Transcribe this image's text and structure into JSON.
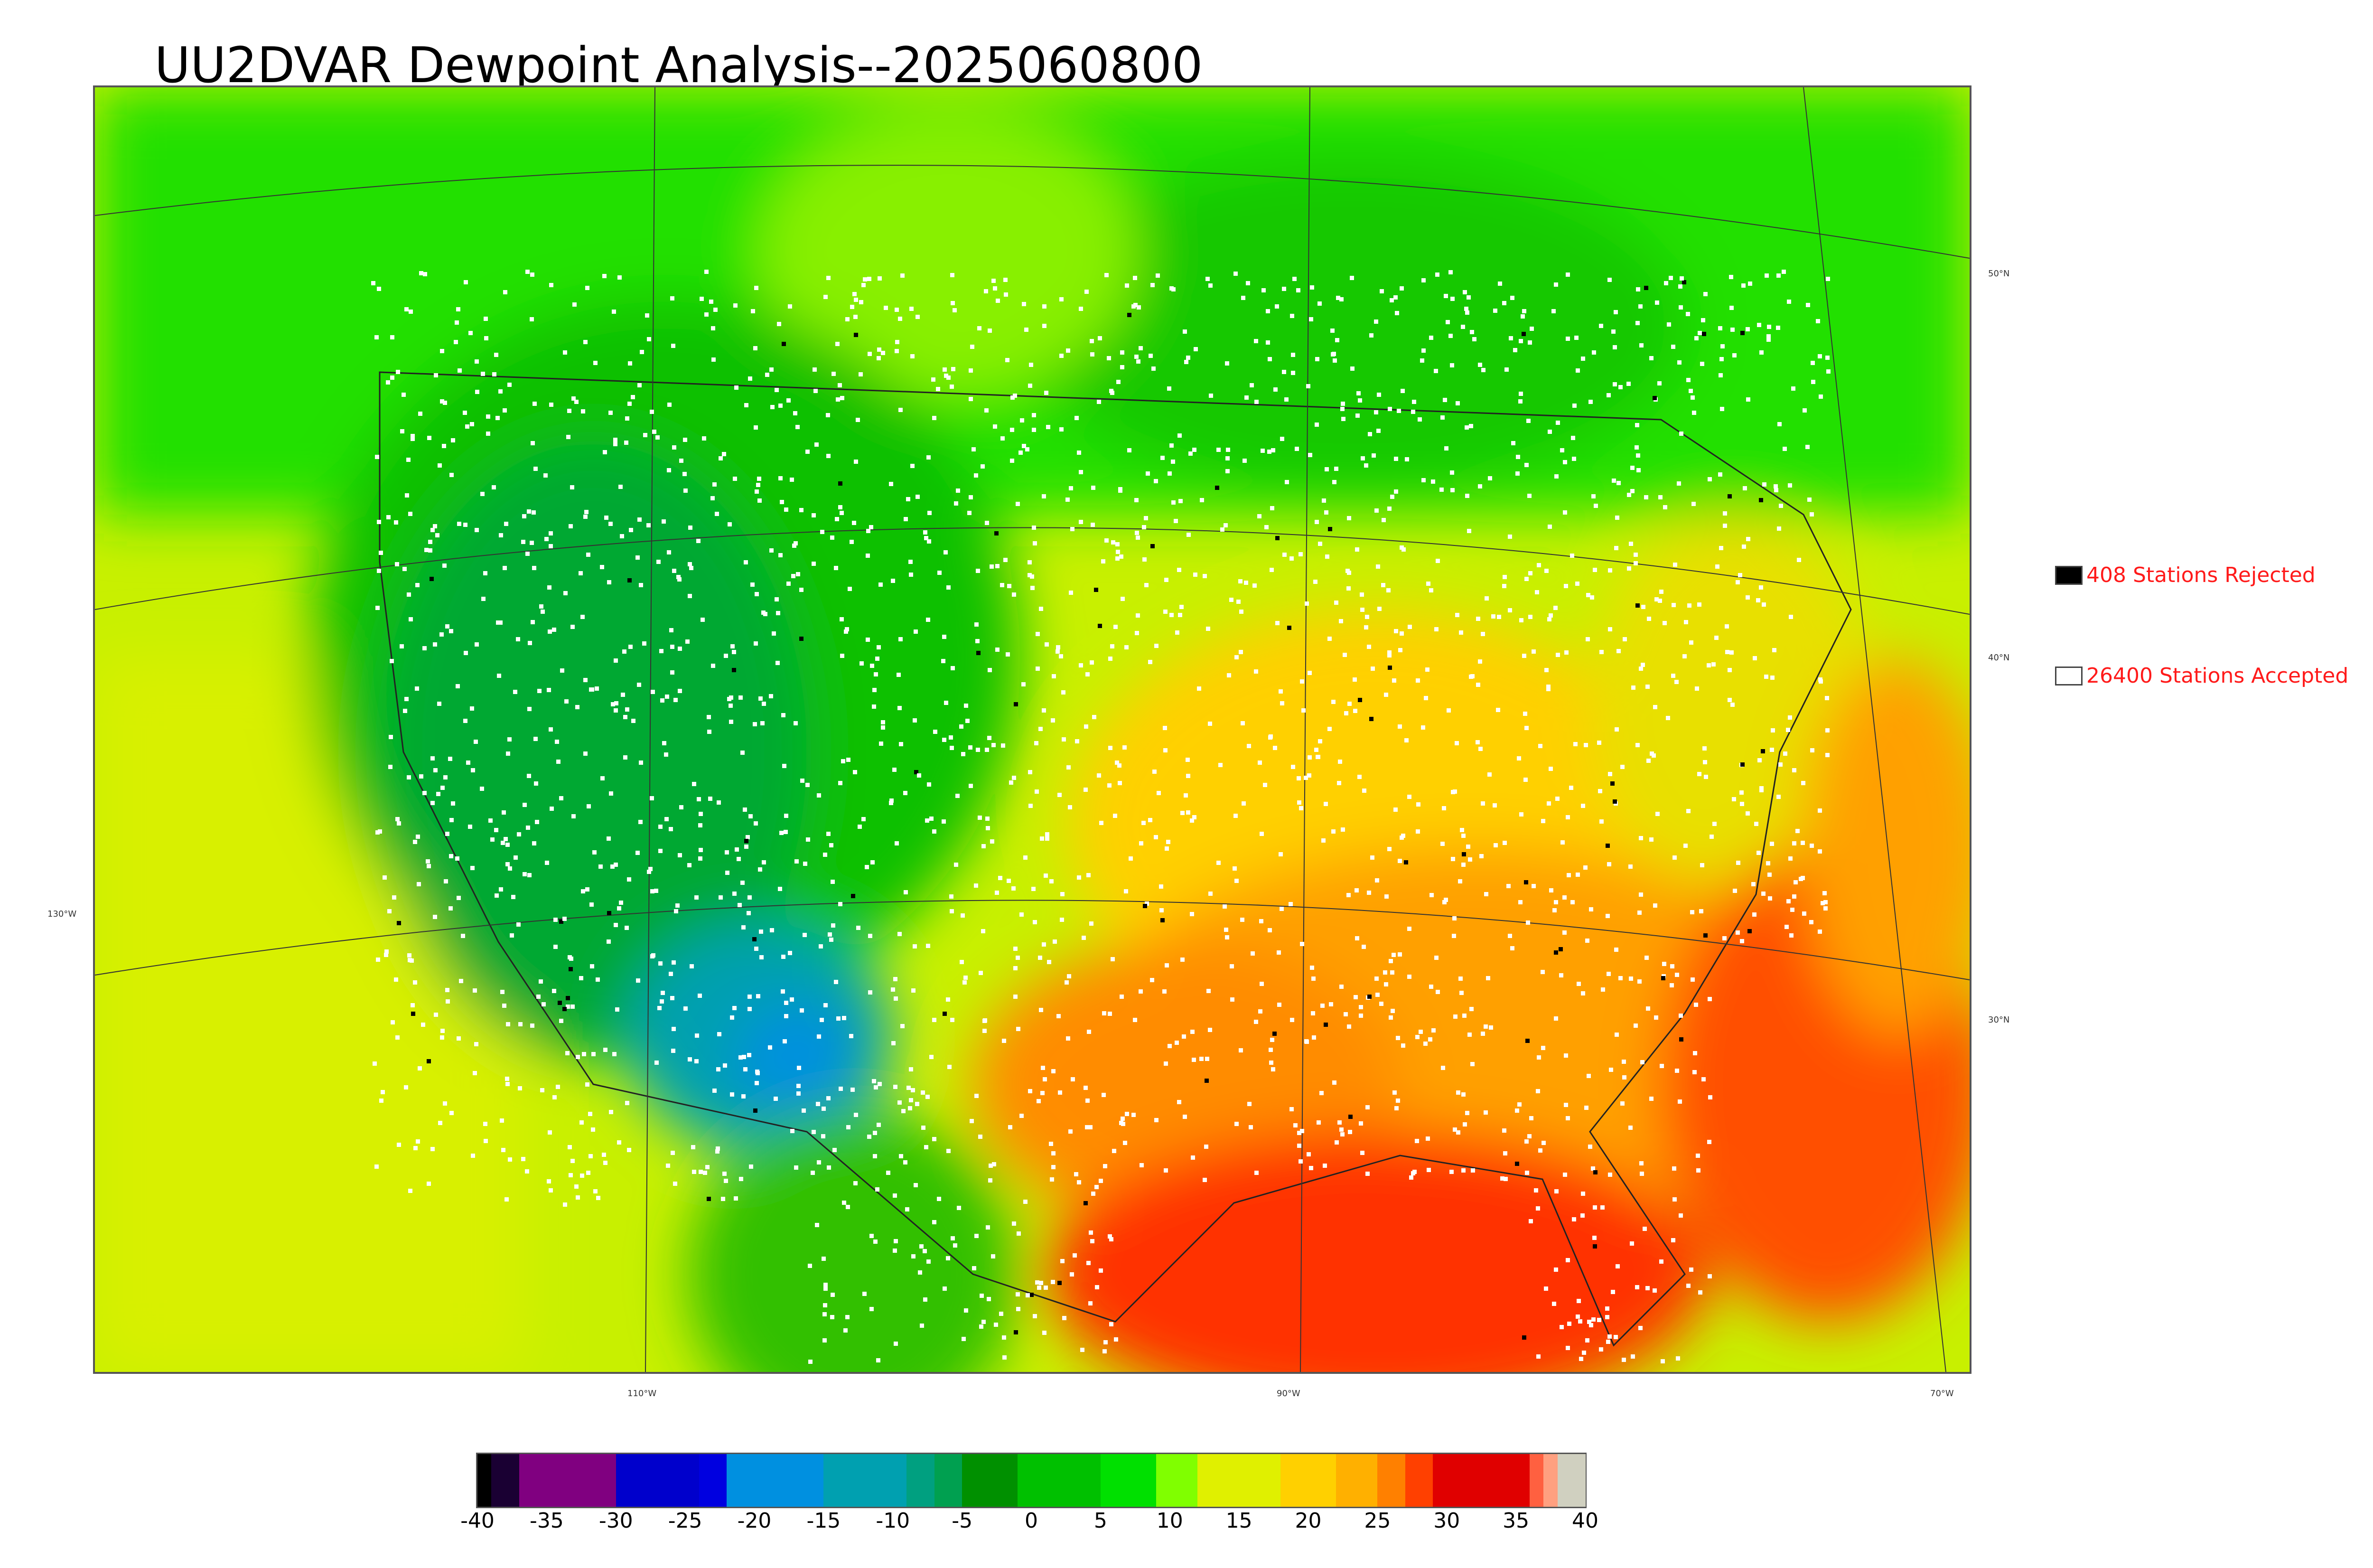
{
  "title": "UU2DVAR Dewpoint Analysis--2025060800",
  "legend": {
    "rejected": {
      "label": "408 Stations Rejected",
      "count": 408,
      "swatch_color": "#000000"
    },
    "accepted": {
      "label": "26400 Stations Accepted",
      "count": 26400,
      "swatch_color": "#ffffff"
    },
    "text_color": "#ff1a1a"
  },
  "map": {
    "latitude_labels": [
      "50°N",
      "40°N",
      "30°N"
    ],
    "longitude_labels": [
      "130°W",
      "110°W",
      "90°W",
      "70°W"
    ],
    "field": "dewpoint",
    "regions": {
      "northwest_interior": "green",
      "southwest_four_corners": "teal-blue",
      "midwest_northeast": "yellow-orange",
      "gulf_coast_southeast": "orange-red",
      "gulf_of_mexico_atlantic": "red-orange",
      "pacific_ocean": "yellow-green",
      "canada": "green"
    },
    "station_colors": {
      "accepted": "#ffffff",
      "rejected": "#000000"
    }
  },
  "colorbar": {
    "ticks": [
      "-40",
      "-35",
      "-30",
      "-25",
      "-20",
      "-15",
      "-10",
      "-5",
      "0",
      "5",
      "10",
      "15",
      "20",
      "25",
      "30",
      "35",
      "40"
    ],
    "range": [
      -40,
      40
    ],
    "bands": [
      {
        "from": -40,
        "to": -39,
        "color": "#000000"
      },
      {
        "from": -39,
        "to": -37,
        "color": "#1a0033"
      },
      {
        "from": -37,
        "to": -30,
        "color": "#800080"
      },
      {
        "from": -30,
        "to": -24,
        "color": "#0000cc"
      },
      {
        "from": -24,
        "to": -22,
        "color": "#0000e0"
      },
      {
        "from": -22,
        "to": -15,
        "color": "#0090e0"
      },
      {
        "from": -15,
        "to": -9,
        "color": "#00a0b0"
      },
      {
        "from": -9,
        "to": -7,
        "color": "#00a080"
      },
      {
        "from": -7,
        "to": -5,
        "color": "#00a050"
      },
      {
        "from": -5,
        "to": -1,
        "color": "#009000"
      },
      {
        "from": -1,
        "to": 5,
        "color": "#00c000"
      },
      {
        "from": 5,
        "to": 9,
        "color": "#00e000"
      },
      {
        "from": 9,
        "to": 12,
        "color": "#80ff00"
      },
      {
        "from": 12,
        "to": 18,
        "color": "#e0f000"
      },
      {
        "from": 18,
        "to": 22,
        "color": "#ffd000"
      },
      {
        "from": 22,
        "to": 25,
        "color": "#ffb000"
      },
      {
        "from": 25,
        "to": 27,
        "color": "#ff8000"
      },
      {
        "from": 27,
        "to": 29,
        "color": "#ff4000"
      },
      {
        "from": 29,
        "to": 36,
        "color": "#e00000"
      },
      {
        "from": 36,
        "to": 37,
        "color": "#ff6040"
      },
      {
        "from": 37,
        "to": 38,
        "color": "#ffa080"
      },
      {
        "from": 38,
        "to": 40,
        "color": "#d0d0c0"
      }
    ]
  }
}
